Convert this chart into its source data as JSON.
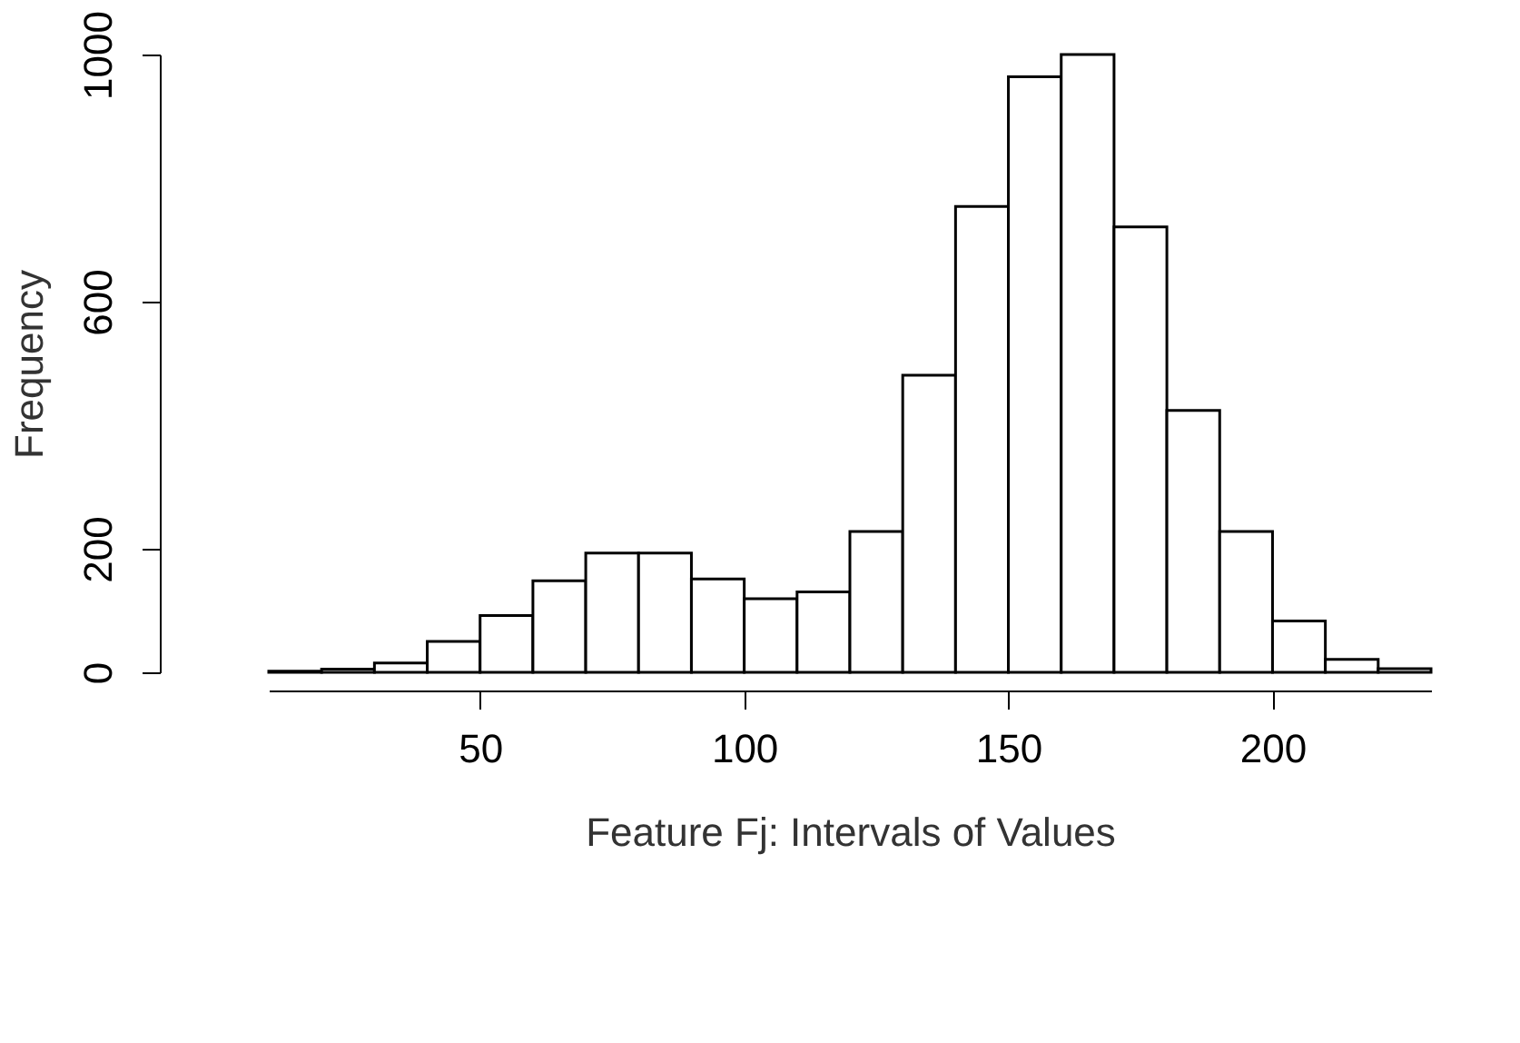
{
  "chart_data": {
    "type": "histogram",
    "xlabel": "Feature Fj: Intervals of Values",
    "ylabel": "Frequency",
    "bins": [
      10,
      20,
      30,
      40,
      50,
      60,
      70,
      80,
      90,
      100,
      110,
      120,
      130,
      140,
      150,
      160,
      170,
      180,
      190,
      200,
      210,
      220,
      230
    ],
    "values": [
      2,
      5,
      15,
      50,
      92,
      148,
      193,
      193,
      151,
      119,
      130,
      228,
      481,
      754,
      964,
      1000,
      721,
      424,
      228,
      83,
      21,
      6
    ],
    "color": "#ffffff",
    "xlim": [
      10,
      230
    ],
    "xticks": [
      50,
      100,
      150,
      200
    ],
    "ylim": [
      0,
      1000
    ],
    "yticks": [
      0,
      200,
      600,
      1000
    ],
    "grid": false
  }
}
